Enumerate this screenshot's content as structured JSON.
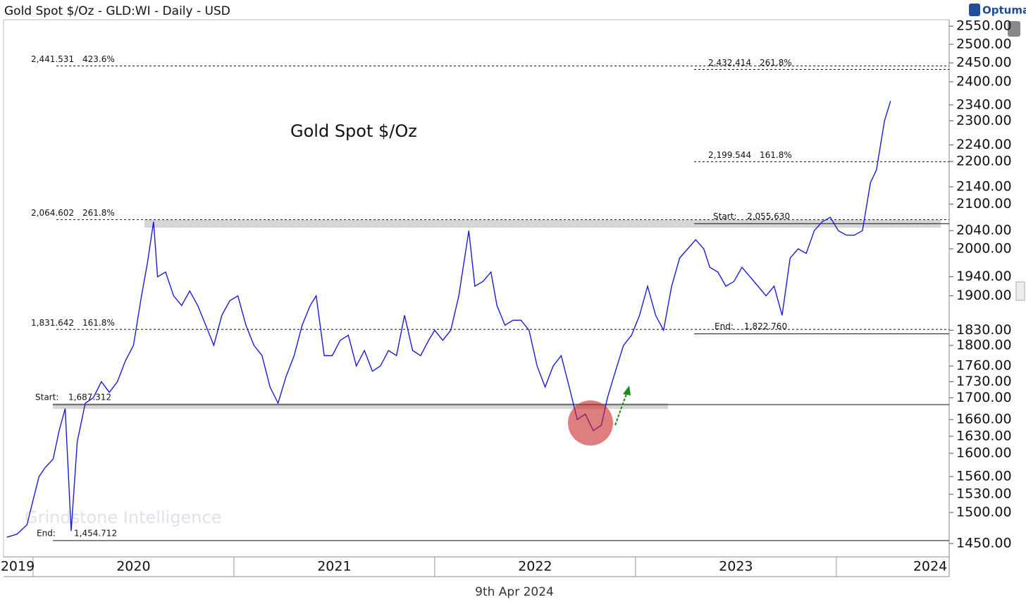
{
  "chart_data": {
    "type": "line",
    "header": "Gold Spot $/Oz - GLD:WI - Daily - USD",
    "logo": "Optuma",
    "watermark": "Grindstone Intelligence",
    "date_label": "9th Apr 2024",
    "ylog": true,
    "xlim": [
      2019.853,
      2024.562
    ],
    "xticks": [
      2020,
      2021,
      2022,
      2023,
      2024
    ],
    "x_labels": [
      "2019",
      "2020",
      "2021",
      "2022",
      "2023",
      "2024"
    ],
    "ylim": [
      1429,
      2568
    ],
    "yticks": [
      {
        "value": 2550,
        "label": "2550.00"
      },
      {
        "value": 2500,
        "label": "2500.00"
      },
      {
        "value": 2450,
        "label": "2450.00"
      },
      {
        "value": 2400,
        "label": "2400.00"
      },
      {
        "value": 2340,
        "label": "2340.00"
      },
      {
        "value": 2300,
        "label": "2300.00"
      },
      {
        "value": 2240,
        "label": "2240.00"
      },
      {
        "value": 2200,
        "label": "2200.00"
      },
      {
        "value": 2140,
        "label": "2140.00"
      },
      {
        "value": 2100,
        "label": "2100.00"
      },
      {
        "value": 2040,
        "label": "2040.00"
      },
      {
        "value": 2000,
        "label": "2000.00"
      },
      {
        "value": 1940,
        "label": "1940.00"
      },
      {
        "value": 1900,
        "label": "1900.00"
      },
      {
        "value": 1830,
        "label": "1830.00"
      },
      {
        "value": 1800,
        "label": "1800.00"
      },
      {
        "value": 1760,
        "label": "1760.00"
      },
      {
        "value": 1730,
        "label": "1730.00"
      },
      {
        "value": 1700,
        "label": "1700.00"
      },
      {
        "value": 1660,
        "label": "1660.00"
      },
      {
        "value": 1630,
        "label": "1630.00"
      },
      {
        "value": 1600,
        "label": "1600.00"
      },
      {
        "value": 1560,
        "label": "1560.00"
      },
      {
        "value": 1530,
        "label": "1530.00"
      },
      {
        "value": 1500,
        "label": "1500.00"
      },
      {
        "value": 1450,
        "label": "1450.00"
      }
    ],
    "levels": [
      {
        "value": 2441.531,
        "label": "2,441.531",
        "ratio": "423.6%"
      },
      {
        "value": 2064.602,
        "label": "2,064.602",
        "ratio": "261.8%"
      },
      {
        "value": 1831.642,
        "label": "1,831.642",
        "ratio": "161.8%"
      },
      {
        "value": 1687.312,
        "label": "1,687.312",
        "ratio": "Start:"
      },
      {
        "value": 1454.712,
        "label": "1,454.712",
        "ratio": "End:"
      },
      {
        "value": 2432.414,
        "label": "2,432.414",
        "ratio": "261.8%"
      },
      {
        "value": 2199.544,
        "label": "2,199.544",
        "ratio": "161.8%"
      },
      {
        "value": 2055.63,
        "label": "2,055.630",
        "ratio": "Start:"
      },
      {
        "value": 1822.76,
        "label": "1,822.760",
        "ratio": "End:"
      }
    ],
    "series": [
      {
        "name": "Gold Spot $/Oz",
        "color": "#1a1adb",
        "x": [
          2019.87,
          2019.92,
          2019.97,
          2020.0,
          2020.03,
          2020.06,
          2020.1,
          2020.13,
          2020.16,
          2020.19,
          2020.22,
          2020.26,
          2020.3,
          2020.34,
          2020.38,
          2020.42,
          2020.46,
          2020.5,
          2020.54,
          2020.57,
          2020.6,
          2020.62,
          2020.66,
          2020.7,
          2020.74,
          2020.78,
          2020.82,
          2020.86,
          2020.9,
          2020.94,
          2020.98,
          2021.02,
          2021.06,
          2021.1,
          2021.14,
          2021.18,
          2021.22,
          2021.26,
          2021.3,
          2021.34,
          2021.38,
          2021.41,
          2021.45,
          2021.49,
          2021.53,
          2021.57,
          2021.61,
          2021.65,
          2021.69,
          2021.73,
          2021.77,
          2021.81,
          2021.85,
          2021.89,
          2021.93,
          2021.97,
          2022.0,
          2022.04,
          2022.08,
          2022.12,
          2022.17,
          2022.2,
          2022.24,
          2022.28,
          2022.31,
          2022.35,
          2022.39,
          2022.43,
          2022.47,
          2022.51,
          2022.55,
          2022.59,
          2022.63,
          2022.67,
          2022.71,
          2022.75,
          2022.79,
          2022.83,
          2022.86,
          2022.9,
          2022.94,
          2022.98,
          2023.02,
          2023.06,
          2023.1,
          2023.14,
          2023.18,
          2023.22,
          2023.26,
          2023.3,
          2023.34,
          2023.37,
          2023.41,
          2023.45,
          2023.49,
          2023.53,
          2023.57,
          2023.61,
          2023.65,
          2023.69,
          2023.73,
          2023.77,
          2023.81,
          2023.85,
          2023.89,
          2023.93,
          2023.97,
          2024.01,
          2024.05,
          2024.09,
          2024.13,
          2024.17,
          2024.2,
          2024.24,
          2024.27
        ],
        "values": [
          1460,
          1465,
          1480,
          1520,
          1560,
          1575,
          1590,
          1640,
          1680,
          1470,
          1620,
          1690,
          1700,
          1730,
          1710,
          1730,
          1770,
          1800,
          1900,
          1970,
          2060,
          1940,
          1950,
          1900,
          1880,
          1910,
          1880,
          1840,
          1800,
          1860,
          1890,
          1900,
          1840,
          1800,
          1780,
          1720,
          1690,
          1740,
          1780,
          1840,
          1880,
          1900,
          1780,
          1780,
          1810,
          1820,
          1760,
          1790,
          1750,
          1760,
          1790,
          1780,
          1860,
          1790,
          1780,
          1810,
          1830,
          1810,
          1830,
          1900,
          2040,
          1920,
          1930,
          1950,
          1880,
          1840,
          1850,
          1850,
          1830,
          1760,
          1720,
          1760,
          1780,
          1720,
          1660,
          1670,
          1640,
          1650,
          1700,
          1750,
          1800,
          1820,
          1860,
          1920,
          1860,
          1830,
          1920,
          1980,
          2000,
          2020,
          2000,
          1960,
          1950,
          1920,
          1930,
          1960,
          1940,
          1920,
          1900,
          1920,
          1860,
          1980,
          2000,
          1990,
          2040,
          2060,
          2070,
          2040,
          2030,
          2030,
          2040,
          2150,
          2180,
          2300,
          2350
        ]
      }
    ]
  }
}
